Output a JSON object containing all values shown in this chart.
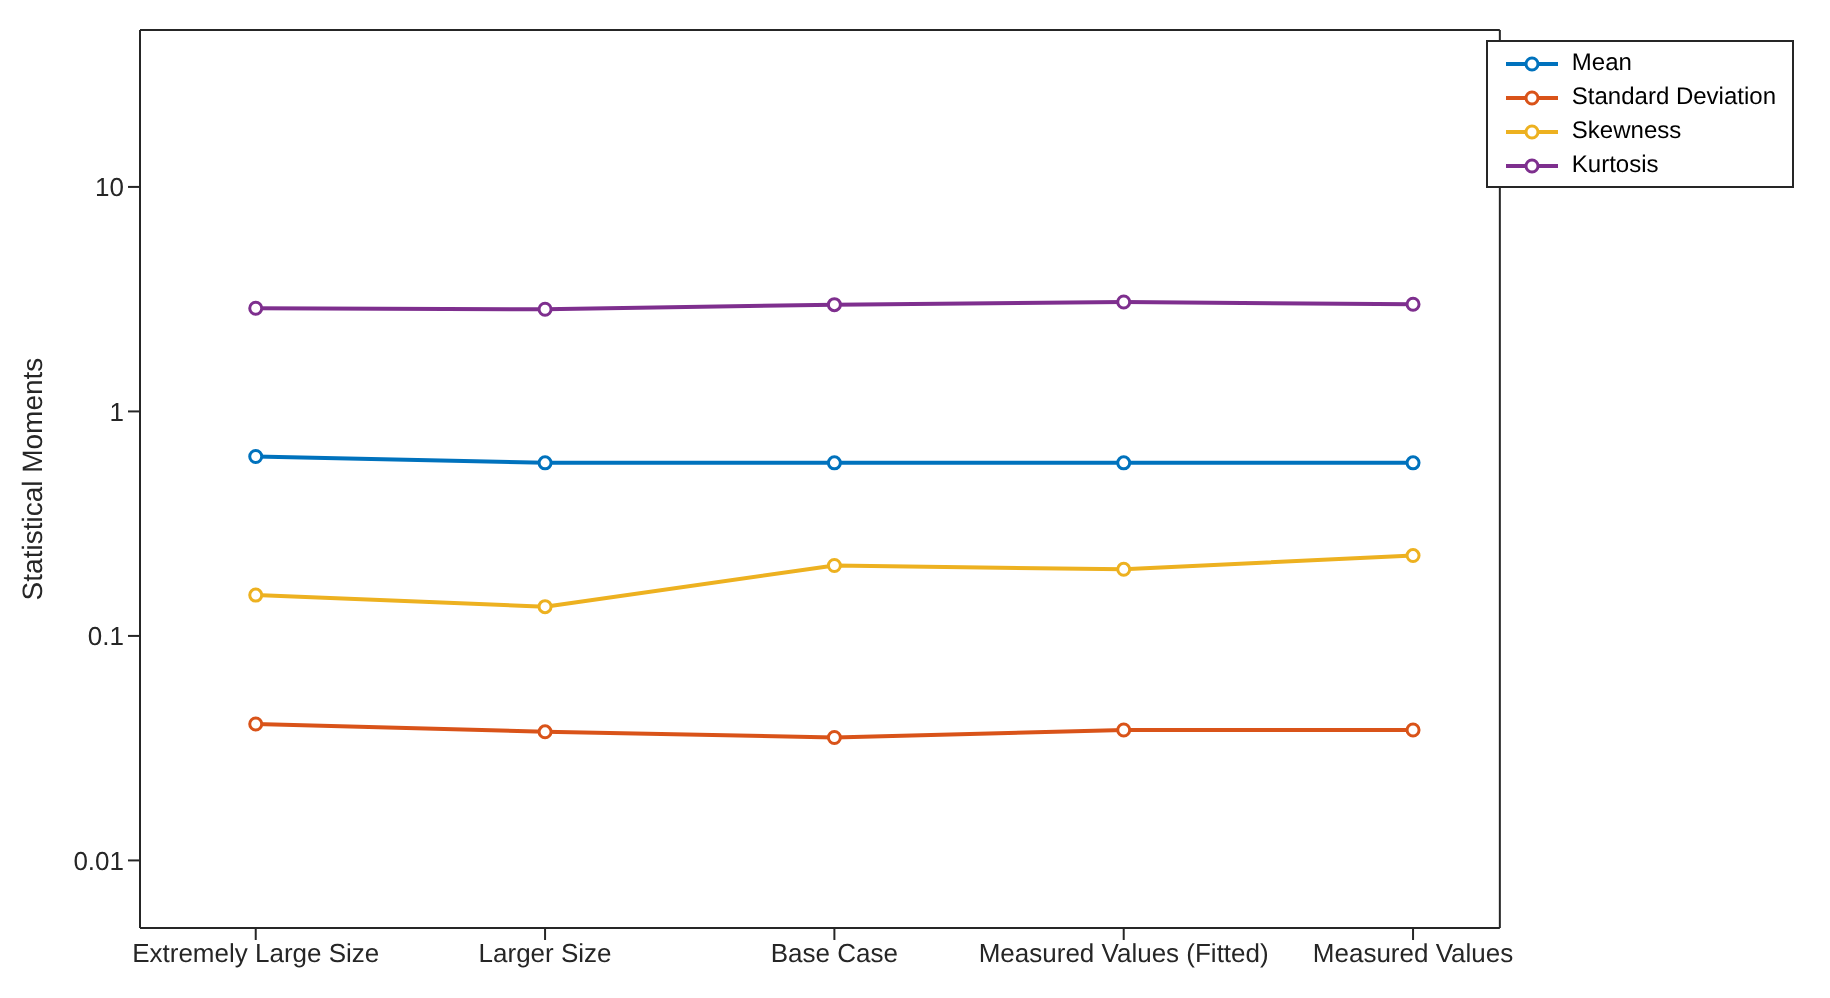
{
  "chart_data": {
    "type": "line",
    "ylabel": "Statistical Moments",
    "categories": [
      "Extremely Large Size",
      "Larger Size",
      "Base Case",
      "Measured Values (Fitted)",
      "Measured Values"
    ],
    "series": [
      {
        "name": "Mean",
        "color": "#0072bd",
        "values": [
          0.63,
          0.59,
          0.59,
          0.59,
          0.59
        ]
      },
      {
        "name": "Standard Deviation",
        "color": "#d95319",
        "values": [
          0.0405,
          0.0374,
          0.0353,
          0.0381,
          0.0381
        ]
      },
      {
        "name": "Skewness",
        "color": "#edb120",
        "values": [
          0.152,
          0.135,
          0.206,
          0.198,
          0.228
        ]
      },
      {
        "name": "Kurtosis",
        "color": "#7e2f8e",
        "values": [
          2.88,
          2.85,
          2.99,
          3.07,
          3.0
        ]
      }
    ],
    "log": "y",
    "ylim": [
      0.005,
      50
    ],
    "yticks": [
      0.01,
      0.1,
      1,
      10
    ],
    "legend": "top right",
    "marker": "circle",
    "line_style": "solid"
  }
}
